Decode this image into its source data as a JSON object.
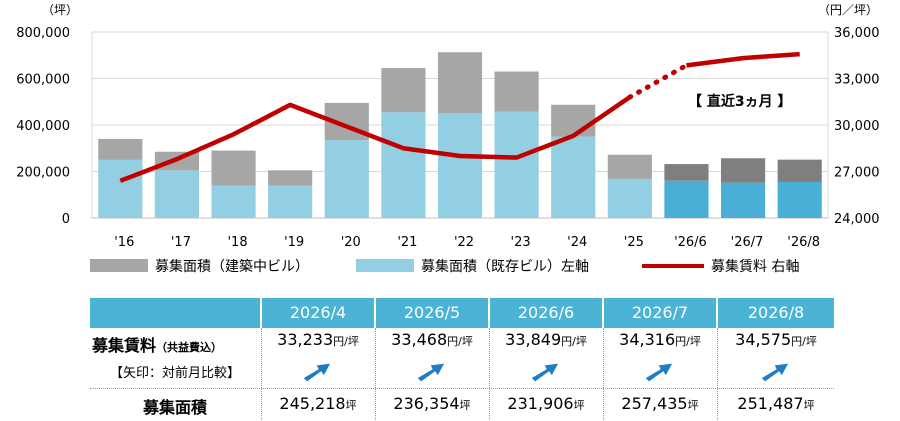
{
  "chart_data": {
    "type": "bar+line",
    "categories": [
      "'16",
      "'17",
      "'18",
      "'19",
      "'20",
      "'21",
      "'22",
      "'23",
      "'24",
      "'25",
      "'26/6",
      "'26/7",
      "'26/8"
    ],
    "left_axis": {
      "unit": "（坪）",
      "ticks": [
        "0",
        "200,000",
        "400,000",
        "600,000",
        "800,000"
      ],
      "ylim": [
        0,
        800000
      ]
    },
    "right_axis": {
      "unit": "（円／坪）",
      "ticks": [
        "24,000",
        "27,000",
        "30,000",
        "33,000",
        "36,000"
      ],
      "ylim": [
        24000,
        36000
      ]
    },
    "series": [
      {
        "name": "募集面積（既存ビル）左軸",
        "type": "bar",
        "color": "#92cfe3",
        "recent_color": "#49afd6",
        "values": [
          250000,
          205000,
          140000,
          140000,
          335000,
          455000,
          450000,
          457000,
          350000,
          168000,
          160000,
          152000,
          155000
        ]
      },
      {
        "name": "募集面積（建築中ビル）",
        "type": "bar-stack",
        "color": "#a6a6a6",
        "recent_color": "#7f7f7f",
        "values": [
          90000,
          80000,
          150000,
          65000,
          160000,
          190000,
          263000,
          173000,
          137000,
          104000,
          72000,
          105000,
          96000
        ]
      },
      {
        "name": "募集賃料 右軸",
        "type": "line",
        "color": "#c00000",
        "values": [
          26400,
          27800,
          29400,
          31300,
          29900,
          28500,
          28000,
          27900,
          29300,
          31800,
          33849,
          34316,
          34575
        ]
      }
    ],
    "dotted_segment": [
      9,
      10
    ],
    "annotation": "【 直近3ヵ月 】"
  },
  "table": {
    "months": [
      "2026/4",
      "2026/5",
      "2026/6",
      "2026/7",
      "2026/8"
    ],
    "rent_label": "募集賃料",
    "rent_note": "（共益費込）",
    "compare_label": "【矢印：対前月比較】",
    "area_label": "募集面積",
    "rent_values": [
      "33,233",
      "33,468",
      "33,849",
      "34,316",
      "34,575"
    ],
    "rent_unit": "円/坪",
    "area_values": [
      "245,218",
      "236,354",
      "231,906",
      "257,435",
      "251,487"
    ],
    "area_unit": "坪",
    "arrow_icon": "up-right-arrow-icon",
    "header_color": "#4bb3d3",
    "arrow_color": "#1f7dc4"
  }
}
